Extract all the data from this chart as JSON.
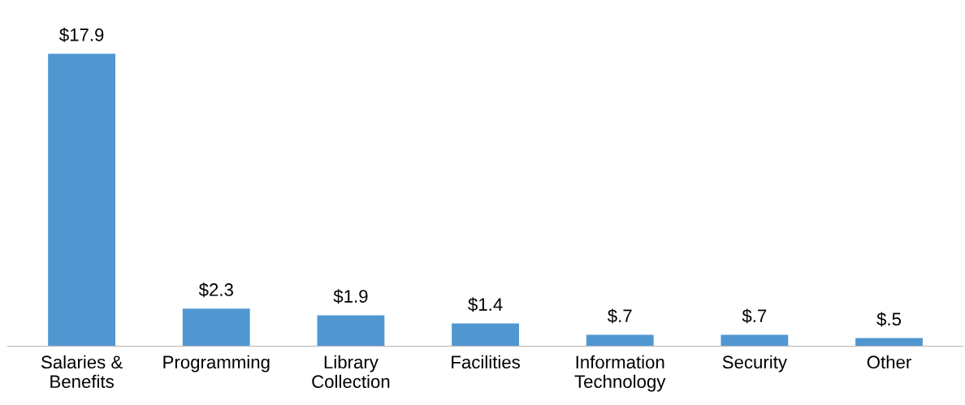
{
  "chart_data": {
    "type": "bar",
    "categories": [
      "Salaries &\nBenefits",
      "Programming",
      "Library\nCollection",
      "Facilities",
      "Information\nTechnology",
      "Security",
      "Other"
    ],
    "values": [
      17.9,
      2.3,
      1.9,
      1.4,
      0.7,
      0.7,
      0.5
    ],
    "value_labels": [
      "$17.9",
      "$2.3",
      "$1.9",
      "$1.4",
      "$.7",
      "$.7",
      "$.5"
    ],
    "color": "#5097d2",
    "grid": false,
    "legend": false
  }
}
